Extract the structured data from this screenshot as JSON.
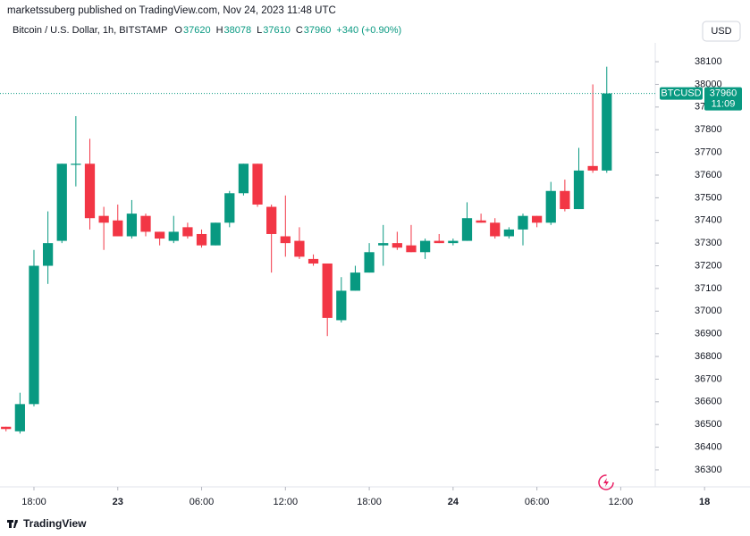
{
  "header": {
    "published": "marketssuberg published on TradingView.com, Nov 24, 2023 11:48 UTC",
    "currency_button": "USD",
    "footer_brand": "TradingView"
  },
  "chart_data": {
    "type": "candlestick",
    "title": "Bitcoin / U.S. Dollar, 1h, BITSTAMP",
    "legend": {
      "open_label": "O",
      "open": 37620,
      "high_label": "H",
      "high": 38078,
      "low_label": "L",
      "low": 37610,
      "close_label": "C",
      "close": 37960,
      "change": "+340 (+0.90%)"
    },
    "price_tag": {
      "symbol": "BTCUSD",
      "countdown": "11:09"
    },
    "up_color": "#089981",
    "down_color": "#f23645",
    "x": [
      -2,
      -1,
      0,
      1,
      2,
      3,
      4,
      5,
      6,
      7,
      8,
      9,
      10,
      11,
      12,
      13,
      14,
      15,
      16,
      17,
      18,
      19,
      20,
      21,
      22,
      23,
      24,
      25,
      26,
      27,
      28,
      29,
      30,
      31,
      32,
      33,
      34,
      35,
      36,
      37,
      38,
      39,
      40,
      41
    ],
    "open": [
      36490,
      36470,
      36590,
      37200,
      37310,
      37645,
      37650,
      37420,
      37400,
      37330,
      37420,
      37350,
      37310,
      37370,
      37340,
      37290,
      37390,
      37520,
      37650,
      37460,
      37330,
      37310,
      37230,
      37210,
      36960,
      37090,
      37170,
      37290,
      37300,
      37290,
      37260,
      37310,
      37300,
      37310,
      37400,
      37390,
      37330,
      37360,
      37420,
      37390,
      37530,
      37450,
      37640,
      37620
    ],
    "high": [
      36490,
      36640,
      37270,
      37440,
      37650,
      37860,
      37760,
      37460,
      37470,
      37490,
      37430,
      37350,
      37420,
      37390,
      37360,
      37390,
      37530,
      37650,
      37650,
      37470,
      37510,
      37370,
      37250,
      37210,
      37150,
      37200,
      37300,
      37380,
      37350,
      37380,
      37320,
      37340,
      37320,
      37480,
      37430,
      37410,
      37370,
      37430,
      37420,
      37570,
      37580,
      37720,
      38000,
      38078
    ],
    "low": [
      36470,
      36460,
      36580,
      37120,
      37300,
      37550,
      37360,
      37270,
      37330,
      37320,
      37330,
      37290,
      37300,
      37320,
      37280,
      37290,
      37370,
      37510,
      37460,
      37170,
      37240,
      37230,
      37200,
      36890,
      36950,
      37090,
      37170,
      37200,
      37270,
      37260,
      37230,
      37300,
      37290,
      37310,
      37390,
      37320,
      37320,
      37290,
      37370,
      37380,
      37440,
      37450,
      37610,
      37610
    ],
    "close": [
      36480,
      36590,
      37200,
      37300,
      37650,
      37650,
      37410,
      37390,
      37330,
      37430,
      37350,
      37320,
      37350,
      37330,
      37290,
      37390,
      37520,
      37650,
      37470,
      37340,
      37300,
      37240,
      37210,
      36970,
      37090,
      37170,
      37260,
      37300,
      37280,
      37260,
      37310,
      37300,
      37310,
      37410,
      37390,
      37330,
      37360,
      37420,
      37390,
      37530,
      37450,
      37620,
      37620,
      37960
    ],
    "xlim": [
      -2.43,
      44.47
    ],
    "xticks": [
      {
        "value": 0,
        "label": "18:00"
      },
      {
        "value": 6,
        "label": "23"
      },
      {
        "value": 12,
        "label": "06:00"
      },
      {
        "value": 18,
        "label": "12:00"
      },
      {
        "value": 24,
        "label": "18:00"
      },
      {
        "value": 30,
        "label": "24"
      },
      {
        "value": 36,
        "label": "06:00"
      },
      {
        "value": 42,
        "label": "12:00"
      },
      {
        "value": 48,
        "label": "18"
      }
    ],
    "ylim": [
      36225,
      38183
    ],
    "yticks": [
      36300,
      36400,
      36500,
      36600,
      36700,
      36800,
      36900,
      37000,
      37100,
      37200,
      37300,
      37400,
      37500,
      37600,
      37700,
      37800,
      37900,
      38000,
      38100
    ],
    "grid": false
  }
}
